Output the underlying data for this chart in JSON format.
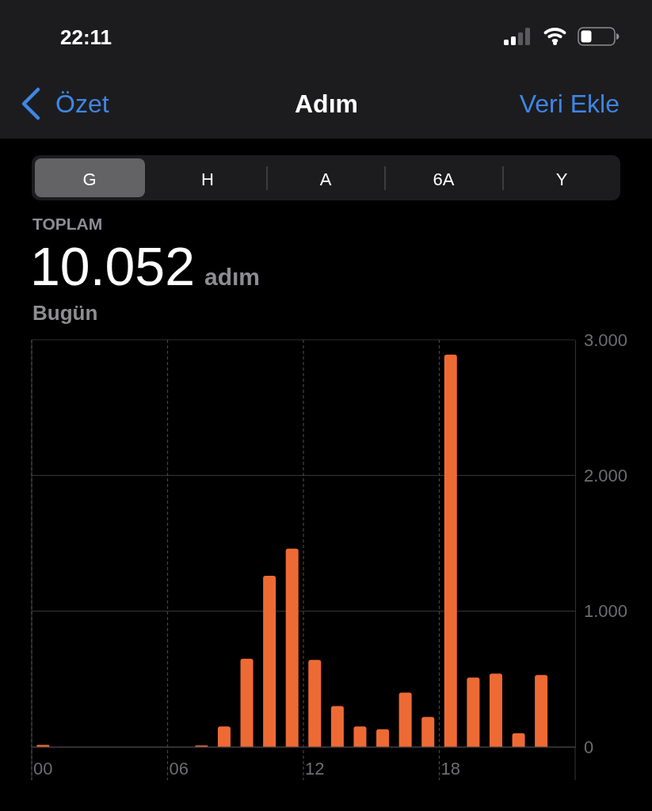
{
  "chart_data": {
    "type": "bar",
    "title": "Adım",
    "categories": [
      "00",
      null,
      null,
      null,
      null,
      null,
      "06",
      null,
      null,
      null,
      null,
      null,
      "12",
      null,
      null,
      null,
      null,
      null,
      "18",
      null,
      null,
      null,
      null,
      null
    ],
    "values": [
      15,
      null,
      null,
      null,
      null,
      null,
      null,
      10,
      150,
      650,
      1260,
      1460,
      640,
      300,
      150,
      130,
      400,
      220,
      2890,
      510,
      540,
      100,
      530,
      null
    ],
    "color": "#ee6a35",
    "ylim": [
      0,
      3000
    ],
    "yticks": [
      0,
      {
        "value": 1000,
        "label": "1.000"
      },
      {
        "value": 2000,
        "label": "2.000"
      },
      {
        "value": 3000,
        "label": "3.000"
      }
    ],
    "grid": true,
    "annotations": [
      "22:11",
      "Özet",
      "Veri Ekle",
      "G",
      "H",
      "A",
      "6A",
      "Y",
      "TOPLAM",
      "10.052",
      "adım",
      "Bugün"
    ]
  }
}
